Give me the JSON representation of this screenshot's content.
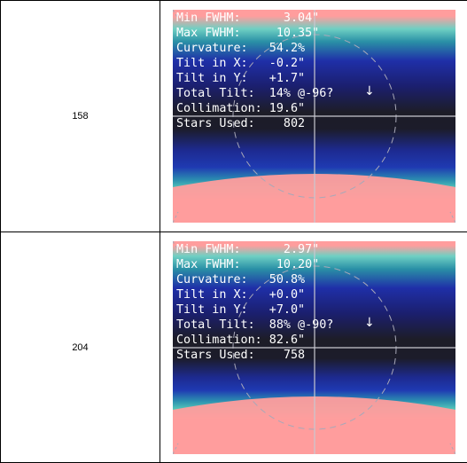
{
  "rows": [
    {
      "id": "158",
      "stats": {
        "min_fwhm": "Min FWHM:      3.04\"",
        "max_fwhm": "Max FWHM:     10.35\"",
        "curvature": "Curvature:   54.2%",
        "tilt_x": "Tilt in X:   -0.2\"",
        "tilt_y": "Tilt in Y:   +1.7\"",
        "total_tilt": "Total Tilt:  14% @-96?",
        "collimation": "Collimation: 19.6\"",
        "stars_used": "Stars Used:    802"
      }
    },
    {
      "id": "204",
      "stats": {
        "min_fwhm": "Min FWHM:      2.97\"",
        "max_fwhm": "Max FWHM:     10.20\"",
        "curvature": "Curvature:   50.8%",
        "tilt_x": "Tilt in X:   +0.0\"",
        "tilt_y": "Tilt in Y:   +7.0\"",
        "total_tilt": "Total Tilt:  88% @-90?",
        "collimation": "Collimation: 82.6\"",
        "stars_used": "Stars Used:    758"
      }
    }
  ],
  "colors": {
    "hot": "#ff9d9d",
    "teal": "#2fb3a8",
    "blue": "#1c2aa8",
    "dark": "#1e1e2a"
  },
  "icons": {
    "tilt_direction": "down-arrow-icon"
  }
}
